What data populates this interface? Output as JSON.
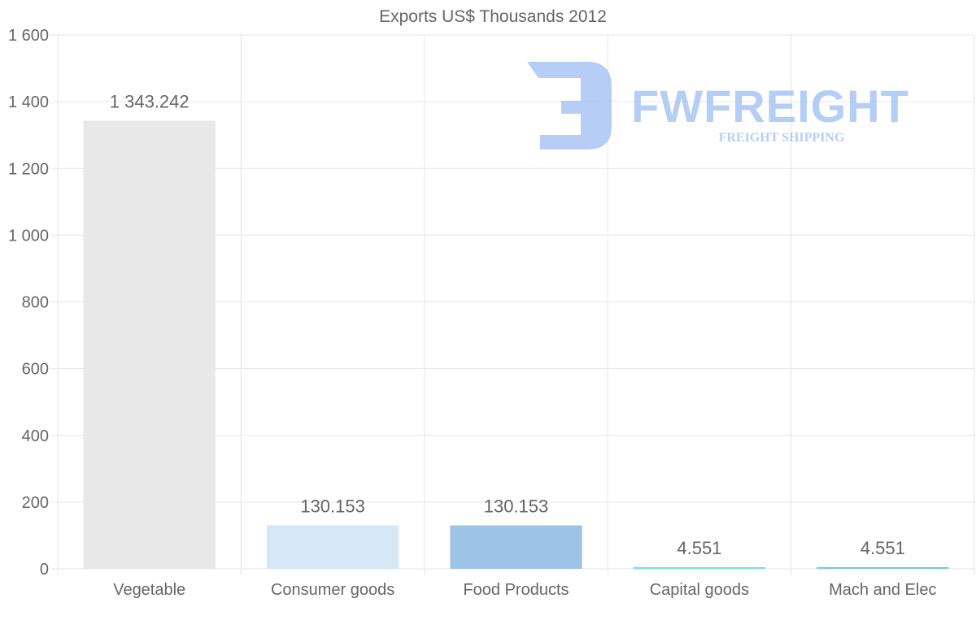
{
  "chart_data": {
    "type": "bar",
    "title": "Exports US$ Thousands 2012",
    "categories": [
      "Vegetable",
      "Consumer goods",
      "Food Products",
      "Capital goods",
      "Mach and Elec"
    ],
    "values": [
      1343.242,
      130.153,
      130.153,
      4.551,
      4.551
    ],
    "value_labels": [
      "1 343.242",
      "130.153",
      "130.153",
      "4.551",
      "4.551"
    ],
    "colors": [
      "#e8e8e8",
      "#d6e7f8",
      "#9dc3e6",
      "#6fe0e0",
      "#6fd0d8"
    ],
    "ylim": [
      0,
      1600
    ],
    "yticks": [
      0,
      200,
      400,
      600,
      800,
      1000,
      1200,
      1400,
      1600
    ],
    "ytick_labels": [
      "0",
      "200",
      "400",
      "600",
      "800",
      "1 000",
      "1 200",
      "1 400",
      "1 600"
    ],
    "xlabel": "",
    "ylabel": "",
    "grid": true,
    "legend": "none"
  },
  "watermark": {
    "name": "FWFREIGHT",
    "tagline": "FREIGHT SHIPPING",
    "color": "#a9c6f4"
  }
}
